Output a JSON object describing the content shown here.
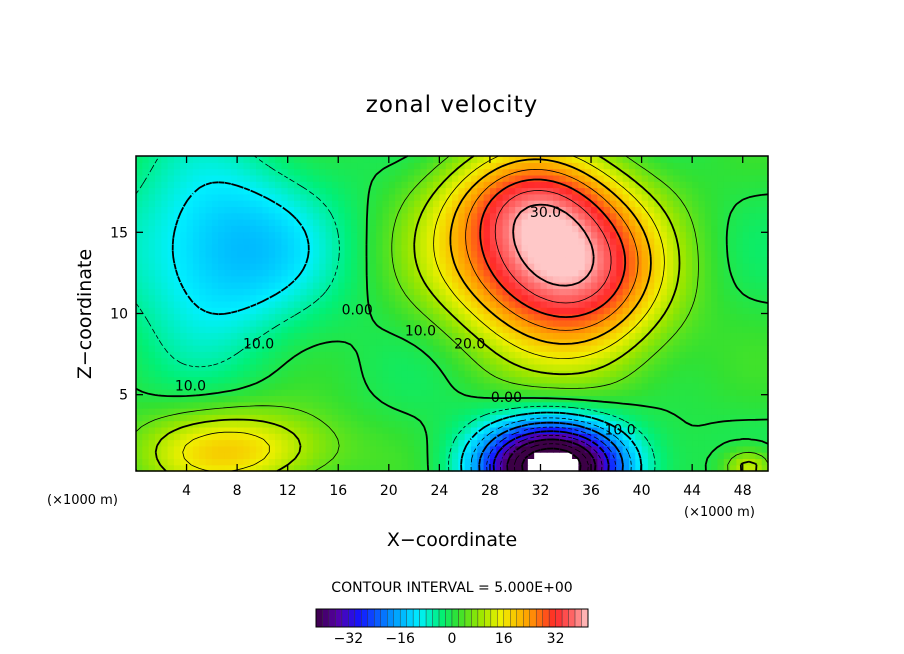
{
  "chart_data": {
    "type": "heatmap",
    "title": "zonal velocity",
    "xlabel": "X−coordinate",
    "ylabel": "Z−coordinate",
    "x_unit": "(×1000 m)",
    "x_unit_left": "(×1000 m)",
    "xlim": [
      0,
      50
    ],
    "ylim": [
      0.3,
      19.7
    ],
    "x_ticks": [
      4,
      8,
      12,
      16,
      20,
      24,
      28,
      32,
      36,
      40,
      44,
      48
    ],
    "x_tick_labels": [
      "4",
      "8",
      "12",
      "16",
      "20",
      "24",
      "28",
      "32",
      "36",
      "40",
      "44",
      "48"
    ],
    "y_ticks": [
      5,
      10,
      15
    ],
    "y_tick_labels": [
      "5",
      "10",
      "15"
    ],
    "contour_interval_text": "CONTOUR INTERVAL = 5.000E+00",
    "contour_labels": [
      {
        "text": "30.0",
        "x": 32.4,
        "y": 16.2
      },
      {
        "text": "20.0",
        "x": 26.4,
        "y": 8.1
      },
      {
        "text": "10.0",
        "x": 22.5,
        "y": 8.9
      },
      {
        "text": "0.00",
        "x": 17.5,
        "y": 10.2
      },
      {
        "text": "10.0",
        "x": 9.7,
        "y": 8.1
      },
      {
        "text": "10.0",
        "x": 4.3,
        "y": 5.5
      },
      {
        "text": "0.00",
        "x": 29.3,
        "y": 4.8
      },
      {
        "text": "10.0",
        "x": 38.3,
        "y": 2.8
      }
    ],
    "colorbar": {
      "min": -42,
      "max": 42,
      "ticks": [
        -32,
        -16,
        0,
        16,
        32
      ],
      "tick_labels": [
        "−32",
        "−16",
        "0",
        "16",
        "32"
      ]
    },
    "features": [
      {
        "name": "upper jet core",
        "x": 32,
        "z": 13.5,
        "u": 38,
        "sx": 5.5,
        "sz": 3.6
      },
      {
        "name": "upper jet extension",
        "x": 31,
        "z": 17.2,
        "u": 14,
        "sx": 4.5,
        "sz": 2.2
      },
      {
        "name": "surface westward jet",
        "x": 33,
        "z": 0.6,
        "u": -58,
        "sx": 4.0,
        "sz": 1.9
      },
      {
        "name": "lower-left westward region",
        "x": 8,
        "z": 1.6,
        "u": 18,
        "sx": 5.5,
        "sz": 1.8
      },
      {
        "name": "upper-left eastward region",
        "x": 7,
        "z": 14,
        "u": -16,
        "sx": 5.5,
        "sz": 4.0
      },
      {
        "name": "right-side positive band",
        "x": 37,
        "z": 11,
        "u": 12,
        "sx": 4.0,
        "sz": 4.0
      },
      {
        "name": "bottom-right eddy",
        "x": 48.5,
        "z": 0.5,
        "u": 14,
        "sx": 1.4,
        "sz": 0.8
      }
    ]
  }
}
